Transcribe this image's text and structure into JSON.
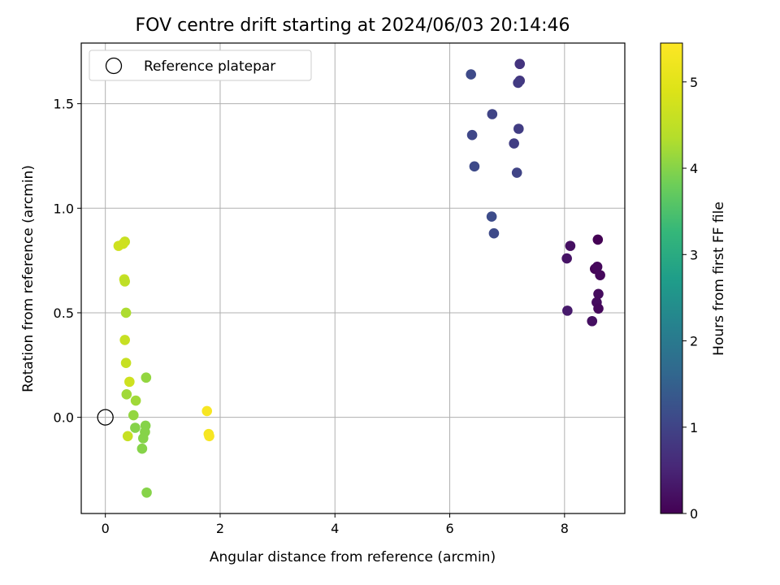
{
  "chart_data": {
    "type": "scatter",
    "title": "FOV centre drift starting at 2024/06/03 20:14:46",
    "xlabel": "Angular distance from reference (arcmin)",
    "ylabel": "Rotation from reference (arcmin)",
    "xlim": [
      -0.42,
      9.05
    ],
    "ylim": [
      -0.46,
      1.79
    ],
    "xticks": [
      0,
      2,
      4,
      6,
      8
    ],
    "xtick_labels": [
      "0",
      "2",
      "4",
      "6",
      "8"
    ],
    "yticks": [
      0.0,
      0.5,
      1.0,
      1.5
    ],
    "ytick_labels": [
      "0.0",
      "0.5",
      "1.0",
      "1.5"
    ],
    "grid": true,
    "legend": {
      "position": "top-left",
      "entries": [
        {
          "label": "Reference platepar",
          "marker": "open-circle"
        }
      ]
    },
    "reference_point": {
      "x": 0,
      "y": 0
    },
    "colorbar": {
      "label": "Hours from first FF file",
      "colormap": "viridis",
      "range": [
        0,
        5.45
      ],
      "ticks": [
        0,
        1,
        2,
        3,
        4,
        5
      ],
      "tick_labels": [
        "0",
        "1",
        "2",
        "3",
        "4",
        "5"
      ]
    },
    "points": [
      {
        "x": 8.58,
        "y": 0.85,
        "c": 0.0
      },
      {
        "x": 8.1,
        "y": 0.82,
        "c": 0.2
      },
      {
        "x": 8.04,
        "y": 0.76,
        "c": 0.25
      },
      {
        "x": 8.53,
        "y": 0.71,
        "c": 0.05
      },
      {
        "x": 8.57,
        "y": 0.72,
        "c": 0.1
      },
      {
        "x": 8.62,
        "y": 0.68,
        "c": 0.1
      },
      {
        "x": 8.59,
        "y": 0.59,
        "c": 0.15
      },
      {
        "x": 8.56,
        "y": 0.55,
        "c": 0.15
      },
      {
        "x": 8.59,
        "y": 0.52,
        "c": 0.1
      },
      {
        "x": 8.05,
        "y": 0.51,
        "c": 0.35
      },
      {
        "x": 8.48,
        "y": 0.46,
        "c": 0.2
      },
      {
        "x": 7.22,
        "y": 1.69,
        "c": 0.75
      },
      {
        "x": 7.22,
        "y": 1.61,
        "c": 0.8
      },
      {
        "x": 7.19,
        "y": 1.6,
        "c": 0.85
      },
      {
        "x": 6.37,
        "y": 1.64,
        "c": 1.1
      },
      {
        "x": 6.74,
        "y": 1.45,
        "c": 1.0
      },
      {
        "x": 7.2,
        "y": 1.38,
        "c": 0.9
      },
      {
        "x": 6.39,
        "y": 1.35,
        "c": 1.05
      },
      {
        "x": 7.12,
        "y": 1.31,
        "c": 0.9
      },
      {
        "x": 6.43,
        "y": 1.2,
        "c": 1.1
      },
      {
        "x": 7.17,
        "y": 1.17,
        "c": 1.0
      },
      {
        "x": 6.73,
        "y": 0.96,
        "c": 1.15
      },
      {
        "x": 6.77,
        "y": 0.88,
        "c": 1.1
      },
      {
        "x": 0.23,
        "y": 0.82,
        "c": 4.7
      },
      {
        "x": 0.34,
        "y": 0.84,
        "c": 4.6
      },
      {
        "x": 0.31,
        "y": 0.83,
        "c": 4.7
      },
      {
        "x": 0.33,
        "y": 0.66,
        "c": 4.6
      },
      {
        "x": 0.34,
        "y": 0.65,
        "c": 4.5
      },
      {
        "x": 0.36,
        "y": 0.5,
        "c": 4.3
      },
      {
        "x": 0.34,
        "y": 0.37,
        "c": 4.6
      },
      {
        "x": 0.36,
        "y": 0.26,
        "c": 4.6
      },
      {
        "x": 0.42,
        "y": 0.17,
        "c": 4.7
      },
      {
        "x": 0.71,
        "y": 0.19,
        "c": 4.1
      },
      {
        "x": 0.37,
        "y": 0.11,
        "c": 4.2
      },
      {
        "x": 0.53,
        "y": 0.08,
        "c": 4.2
      },
      {
        "x": 0.49,
        "y": 0.01,
        "c": 4.1
      },
      {
        "x": 0.52,
        "y": -0.05,
        "c": 4.0
      },
      {
        "x": 0.7,
        "y": -0.04,
        "c": 4.0
      },
      {
        "x": 0.69,
        "y": -0.07,
        "c": 4.0
      },
      {
        "x": 0.66,
        "y": -0.1,
        "c": 4.0
      },
      {
        "x": 0.39,
        "y": -0.09,
        "c": 4.6
      },
      {
        "x": 0.64,
        "y": -0.15,
        "c": 4.0
      },
      {
        "x": 0.72,
        "y": -0.36,
        "c": 4.0
      },
      {
        "x": 1.77,
        "y": 0.03,
        "c": 5.35
      },
      {
        "x": 1.8,
        "y": -0.08,
        "c": 5.3
      },
      {
        "x": 1.81,
        "y": -0.09,
        "c": 5.35
      }
    ]
  }
}
